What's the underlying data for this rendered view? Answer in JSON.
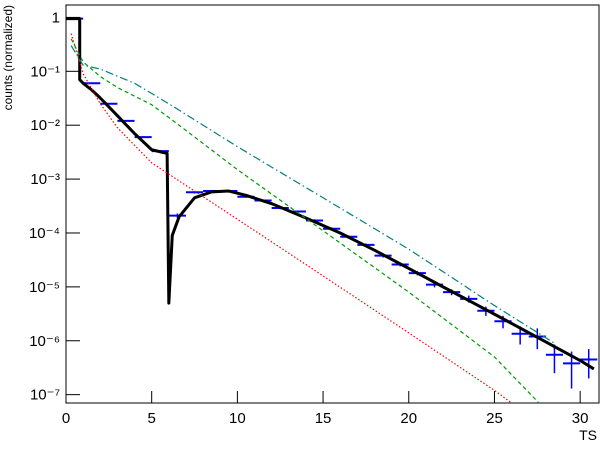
{
  "chart_data": {
    "type": "line",
    "xlabel": "TS",
    "ylabel": "counts (normalized)",
    "xlim": [
      0,
      31.1
    ],
    "ylim": [
      7e-08,
      1.7
    ],
    "log_y": true,
    "xticks": [
      0,
      5,
      10,
      15,
      20,
      25,
      30
    ],
    "yticks": [
      {
        "value": 1e-07,
        "label": "10⁻⁷"
      },
      {
        "value": 1e-06,
        "label": "10⁻⁶"
      },
      {
        "value": 1e-05,
        "label": "10⁻⁵"
      },
      {
        "value": 0.0001,
        "label": "10⁻⁴"
      },
      {
        "value": 0.001,
        "label": "10⁻³"
      },
      {
        "value": 0.01,
        "label": "10⁻²"
      },
      {
        "value": 0.1,
        "label": "10⁻¹"
      },
      1
    ],
    "series": [
      {
        "type": "errorbar",
        "color": "#0000ff",
        "bins": [
          0,
          1,
          2,
          3,
          4,
          5,
          6,
          7,
          8,
          9,
          10,
          11,
          12,
          13,
          14,
          15,
          16,
          17,
          18,
          19,
          20,
          21,
          22,
          23,
          24,
          25,
          26,
          27,
          28,
          29,
          30,
          31
        ],
        "values": [
          0.95,
          0.06,
          0.025,
          0.012,
          0.006,
          0.0033,
          0.00021,
          0.00057,
          0.0006,
          0.0006,
          0.00047,
          0.0004,
          0.00029,
          0.00025,
          0.00017,
          0.00012,
          8.5e-05,
          6e-05,
          3.8e-05,
          2.6e-05,
          1.8e-05,
          1.1e-05,
          8e-06,
          6e-06,
          3.6e-06,
          2.3e-06,
          1.35e-06,
          1.2e-06,
          5.5e-07,
          3.8e-07,
          4.5e-07
        ],
        "errors": [
          0.01,
          0.001,
          0.0005,
          0.0003,
          0.0002,
          0.0001,
          2e-05,
          3e-05,
          3e-05,
          3e-05,
          2e-05,
          2e-05,
          1.5e-05,
          1.2e-05,
          1e-05,
          7e-06,
          5e-06,
          4e-06,
          3e-06,
          2e-06,
          1.6e-06,
          1.2e-06,
          1e-06,
          9e-07,
          7e-07,
          6e-07,
          5e-07,
          5e-07,
          3e-07,
          2.5e-07,
          2.5e-07
        ]
      },
      {
        "type": "line",
        "color": "#000000",
        "style": "solid",
        "x": [
          0,
          0.8,
          0.8,
          1.0,
          1.5,
          2,
          3,
          4,
          5,
          5.9,
          6.0,
          6.2,
          6.6,
          7.5,
          8.5,
          9.5,
          10.5,
          12,
          14,
          16,
          18,
          20,
          22,
          24,
          26,
          28,
          30,
          30.8
        ],
        "values": [
          0.95,
          0.95,
          0.07,
          0.06,
          0.045,
          0.032,
          0.015,
          0.007,
          0.0035,
          0.003,
          5e-06,
          9e-05,
          0.0002,
          0.00045,
          0.00058,
          0.0006,
          0.0005,
          0.00035,
          0.00019,
          0.0001,
          4.8e-05,
          2.2e-05,
          1e-05,
          4.6e-06,
          2.1e-06,
          9.5e-07,
          4.3e-07,
          3e-07
        ]
      },
      {
        "type": "line",
        "color": "#ff0000",
        "style": "dotted",
        "x": [
          0.3,
          1,
          2,
          3,
          5,
          10,
          15,
          20,
          25,
          26
        ],
        "values": [
          0.5,
          0.09,
          0.025,
          0.009,
          0.002,
          0.00018,
          1.6e-05,
          1.4e-06,
          1.2e-07,
          7e-08
        ]
      },
      {
        "type": "line",
        "color": "#009900",
        "style": "dashed",
        "x": [
          0.3,
          1,
          2,
          3,
          5,
          7,
          10,
          15,
          20,
          25,
          27.6
        ],
        "values": [
          0.4,
          0.15,
          0.08,
          0.05,
          0.024,
          0.008,
          0.0015,
          0.00011,
          8e-06,
          5e-07,
          7e-08
        ]
      },
      {
        "type": "line",
        "color": "#008080",
        "style": "dashdot",
        "x": [
          0.3,
          1,
          2,
          4,
          6,
          10,
          15,
          20,
          25,
          28.5
        ],
        "values": [
          0.3,
          0.13,
          0.11,
          0.06,
          0.025,
          0.004,
          0.00045,
          5e-05,
          4.5e-06,
          9e-07
        ]
      }
    ]
  }
}
